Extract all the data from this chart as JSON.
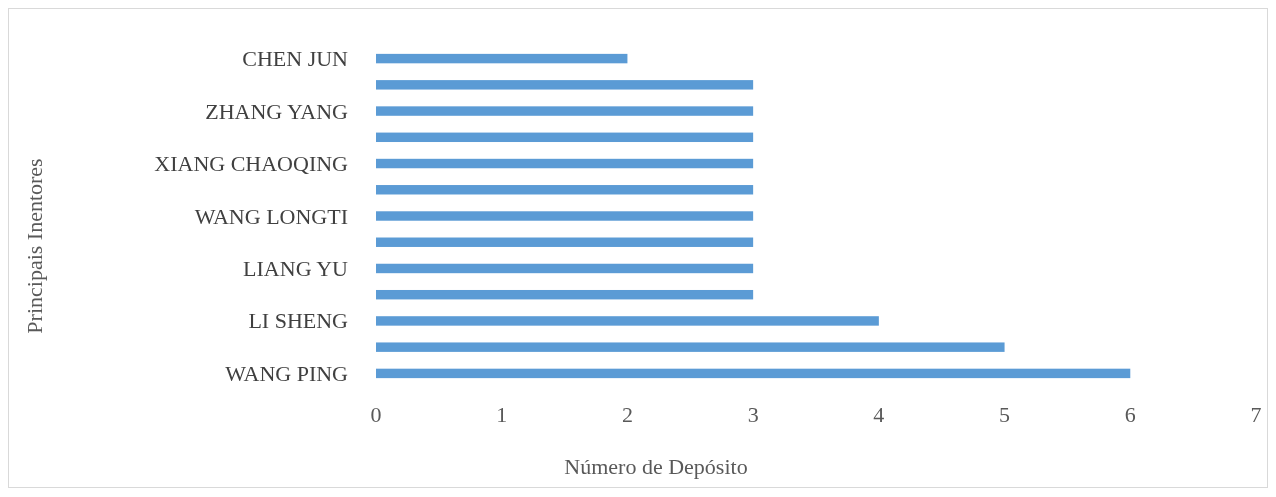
{
  "chart_data": {
    "type": "bar",
    "orientation": "horizontal",
    "xlabel": "Número de Depósito",
    "ylabel": "Principais Inentores",
    "categories": [
      "CHEN JUN",
      null,
      "ZHANG YANG",
      null,
      "XIANG CHAOQING",
      null,
      "WANG LONGTI",
      null,
      "LIANG YU",
      null,
      "LI SHENG",
      null,
      "WANG PING"
    ],
    "values": [
      2,
      3,
      3,
      3,
      3,
      3,
      3,
      3,
      3,
      3,
      4,
      5,
      6
    ],
    "color": "#5b9bd5",
    "xlim": [
      0,
      7
    ],
    "xticks": [
      0,
      1,
      2,
      3,
      4,
      5,
      6,
      7
    ],
    "grid": false
  }
}
